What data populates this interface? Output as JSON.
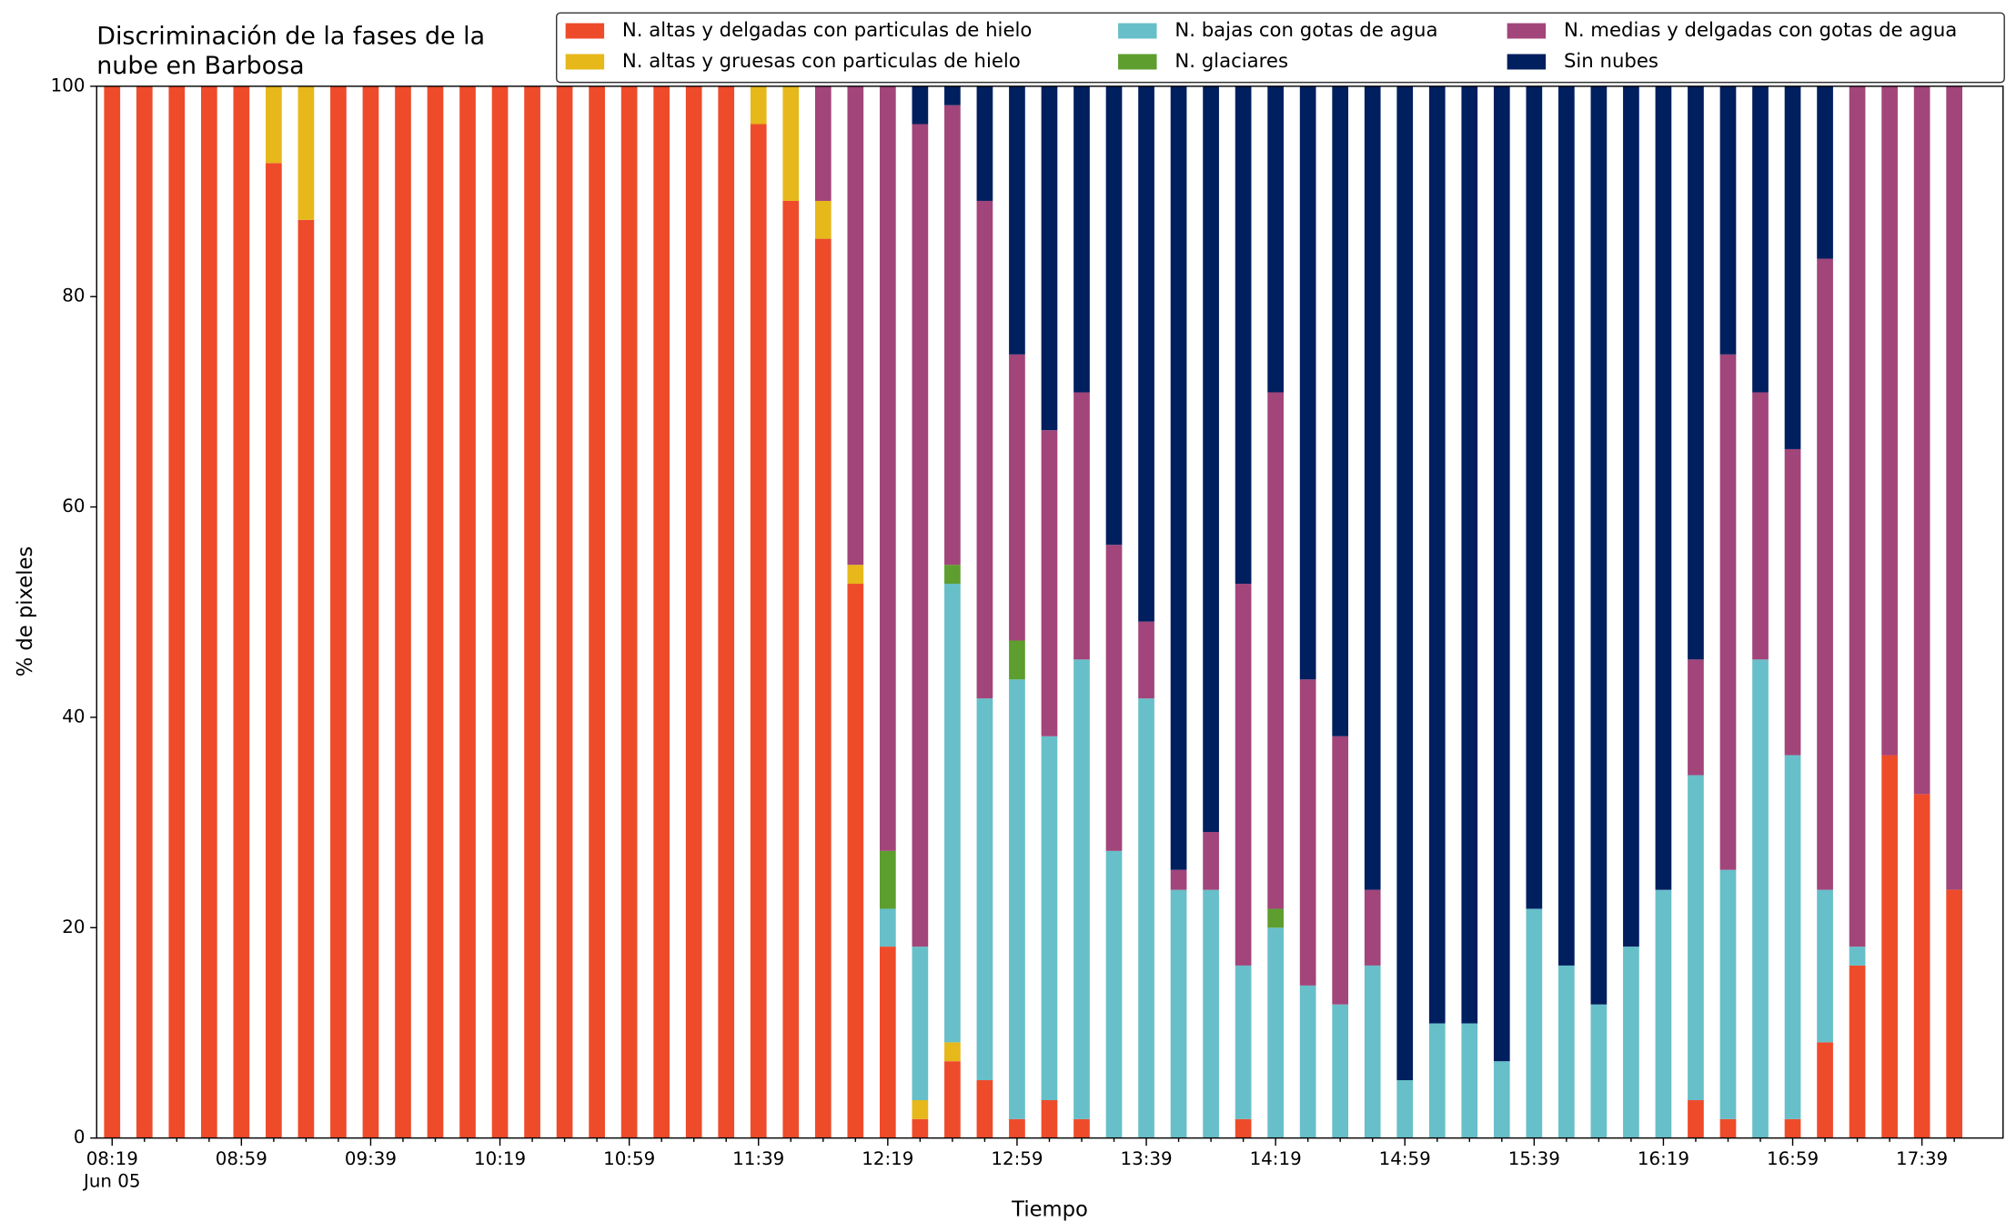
{
  "chart_data": {
    "type": "stacked_bar",
    "title": [
      "Discriminación de la fases de la",
      "nube en Barbosa"
    ],
    "x_label": "Tiempo",
    "y_label": "% de pixeles",
    "date_label": "Jun 05",
    "categories": [
      "08:19",
      null,
      null,
      null,
      "08:59",
      null,
      null,
      null,
      "09:39",
      null,
      null,
      null,
      "10:19",
      null,
      null,
      null,
      "10:59",
      null,
      null,
      null,
      "11:39",
      null,
      null,
      null,
      "12:19",
      null,
      null,
      null,
      "12:59",
      null,
      null,
      null,
      "13:39",
      null,
      null,
      null,
      "14:19",
      null,
      null,
      null,
      "14:59",
      null,
      null,
      null,
      "15:39",
      null,
      null,
      null,
      "16:19",
      null,
      null,
      null,
      "16:59",
      null,
      null,
      null,
      "17:39",
      null
    ],
    "ylim": [
      0,
      100
    ],
    "yticks": [
      0,
      20,
      40,
      60,
      80,
      100
    ],
    "grid": false,
    "legend": "top",
    "series": [
      {
        "name": "N. altas y delgadas con particulas de hielo",
        "color": "#ee4b2b",
        "values": [
          100,
          100,
          100,
          100,
          100,
          92.7,
          87.3,
          100,
          100,
          100,
          100,
          100,
          100,
          100,
          100,
          100,
          100,
          100,
          100,
          100,
          96.4,
          89.1,
          85.5,
          52.7,
          18.2,
          1.8,
          7.3,
          5.5,
          1.8,
          3.6,
          1.8,
          0,
          0,
          0,
          0,
          1.8,
          0,
          0,
          0,
          0,
          0,
          0,
          0,
          0,
          0,
          0,
          0,
          0,
          0,
          3.6,
          1.8,
          0,
          1.8,
          9.1,
          16.4,
          36.4,
          32.7,
          23.6
        ]
      },
      {
        "name": "N. altas y gruesas con particulas de hielo",
        "color": "#e6b81a",
        "values": [
          0,
          0,
          0,
          0,
          0,
          7.3,
          12.7,
          0,
          0,
          0,
          0,
          0,
          0,
          0,
          0,
          0,
          0,
          0,
          0,
          0,
          3.6,
          10.9,
          3.6,
          1.8,
          0,
          1.8,
          1.8,
          0,
          0,
          0,
          0,
          0,
          0,
          0,
          0,
          0,
          0,
          0,
          0,
          0,
          0,
          0,
          0,
          0,
          0,
          0,
          0,
          0,
          0,
          0,
          0,
          0,
          0,
          0,
          0,
          0,
          0,
          0
        ]
      },
      {
        "name": "N. bajas con gotas de agua",
        "color": "#67bfc9",
        "values": [
          0,
          0,
          0,
          0,
          0,
          0,
          0,
          0,
          0,
          0,
          0,
          0,
          0,
          0,
          0,
          0,
          0,
          0,
          0,
          0,
          0,
          0,
          0,
          0,
          3.6,
          14.6,
          43.6,
          36.3,
          41.8,
          34.6,
          43.7,
          27.3,
          41.8,
          23.6,
          23.6,
          14.6,
          20,
          14.5,
          12.7,
          16.4,
          5.5,
          10.9,
          10.9,
          7.3,
          21.8,
          16.4,
          12.7,
          18.2,
          23.6,
          30.9,
          23.7,
          45.5,
          34.6,
          14.5,
          1.8,
          0,
          0,
          0
        ]
      },
      {
        "name": "N. glaciares",
        "color": "#5d9e2f",
        "values": [
          0,
          0,
          0,
          0,
          0,
          0,
          0,
          0,
          0,
          0,
          0,
          0,
          0,
          0,
          0,
          0,
          0,
          0,
          0,
          0,
          0,
          0,
          0,
          0,
          5.5,
          0,
          1.8,
          0,
          3.7,
          0,
          0,
          0,
          0,
          0,
          0,
          0,
          1.8,
          0,
          0,
          0,
          0,
          0,
          0,
          0,
          0,
          0,
          0,
          0,
          0,
          0,
          0,
          0,
          0,
          0,
          0,
          0,
          0,
          0
        ]
      },
      {
        "name": "N. medias y delgadas con gotas de agua",
        "color": "#a2457a",
        "values": [
          0,
          0,
          0,
          0,
          0,
          0,
          0,
          0,
          0,
          0,
          0,
          0,
          0,
          0,
          0,
          0,
          0,
          0,
          0,
          0,
          0,
          0,
          10.9,
          45.5,
          72.7,
          78.2,
          43.7,
          47.3,
          27.2,
          29.1,
          25.4,
          29.1,
          7.3,
          1.9,
          5.5,
          36.3,
          49.1,
          29.1,
          25.5,
          7.2,
          0,
          0,
          0,
          0,
          0,
          0,
          0,
          0,
          0,
          11,
          49,
          25.4,
          29.1,
          60,
          81.8,
          63.6,
          67.3,
          76.4
        ]
      },
      {
        "name": "Sin nubes",
        "color": "#001f5f",
        "values": [
          0,
          0,
          0,
          0,
          0,
          0,
          0,
          0,
          0,
          0,
          0,
          0,
          0,
          0,
          0,
          0,
          0,
          0,
          0,
          0,
          0,
          0,
          0,
          0,
          0,
          3.6,
          1.8,
          10.9,
          25.5,
          32.7,
          29.1,
          43.6,
          50.9,
          74.5,
          70.9,
          47.3,
          29.1,
          56.4,
          61.8,
          76.4,
          94.5,
          89.1,
          89.1,
          92.7,
          78.2,
          83.6,
          87.3,
          81.8,
          76.4,
          54.5,
          25.5,
          29.1,
          34.5,
          16.4,
          0,
          0,
          0,
          0
        ]
      }
    ]
  }
}
